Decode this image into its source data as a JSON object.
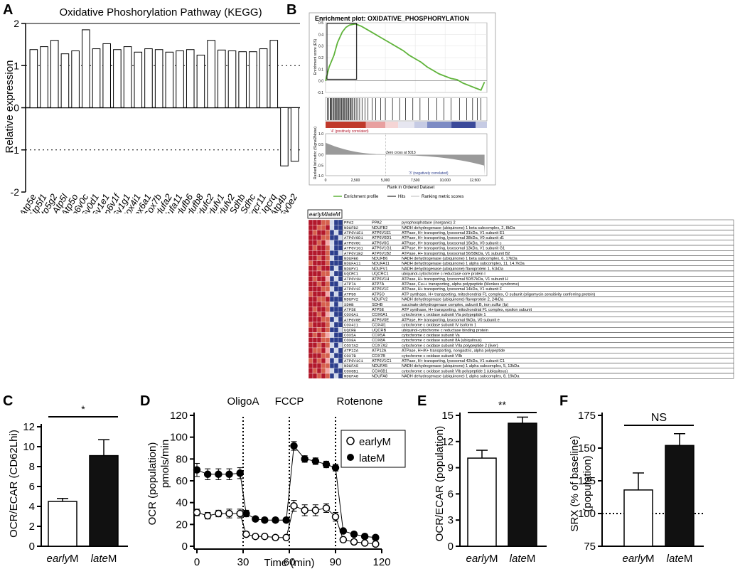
{
  "panel_labels": {
    "a": "A",
    "b": "B",
    "c": "C",
    "d": "D",
    "e": "E",
    "f": "F"
  },
  "chart_data": [
    {
      "id": "A",
      "type": "bar",
      "title": "Oxidative Phoshorylation Pathway (KEGG)",
      "ylabel": "Relative expression",
      "ylim": [
        -2,
        2
      ],
      "yticks": [
        "-2",
        "-1",
        "0",
        "1",
        "2"
      ],
      "reference_lines": [
        1,
        -1
      ],
      "categories": [
        "Atp5e",
        "Atp5f1",
        "Atp5g2",
        "Atp5l",
        "Atp5o",
        "Atp6v0c",
        "Atp6v0d1",
        "Atp6v1e1",
        "Atp6v1f",
        "Atp6v1g1",
        "Cox4i1",
        "Cox6a1",
        "Cox7b",
        "Ndufa2",
        "Ndufa11",
        "Ndufb6",
        "Ndufb8",
        "Ndufc2",
        "Ndufv1",
        "Ndufv2",
        "Sdhb",
        "Sdhc",
        "Uqcr11",
        "Uqcrq",
        "Atp4b",
        "Atp6v0e2"
      ],
      "values": [
        1.38,
        1.45,
        1.6,
        1.28,
        1.35,
        1.85,
        1.4,
        1.52,
        1.38,
        1.45,
        1.32,
        1.4,
        1.38,
        1.32,
        1.35,
        1.38,
        1.25,
        1.6,
        1.37,
        1.35,
        1.33,
        1.33,
        1.4,
        1.6,
        -1.38,
        -1.27
      ]
    },
    {
      "id": "B",
      "type": "line",
      "title": "Enrichment plot: OXIDATIVE_PHOSPHORYLATION",
      "ylabel": "Enrichment score (ES)",
      "ylabel2": "Ranked list metric (Signal2Noise)",
      "xlabel": "Rank in Ordered Dataset",
      "xlim": [
        0,
        13500
      ],
      "xticks": [
        "0",
        "2,500",
        "5,000",
        "7,500",
        "10,000",
        "12,500"
      ],
      "ylim": [
        -0.1,
        0.5
      ],
      "yticks": [
        "0.5",
        "0.4",
        "0.3",
        "0.2",
        "0.1",
        "0.0",
        "-0.1"
      ],
      "ylim2": [
        -1.0,
        1.0
      ],
      "yticks2": [
        "1.0",
        "0.5",
        "0.0",
        "-0.5",
        "-1.0"
      ],
      "label_pos": "'4' (positively correlated)",
      "label_neg": "'3' (negatively correlated)",
      "zero_cross": "Zero cross at 5013",
      "legend": [
        "Enrichment profile",
        "Hits",
        "Ranking metric scores"
      ],
      "es_curve": {
        "x": [
          0,
          300,
          700,
          1000,
          1400,
          1700,
          2000,
          2500,
          3000,
          3500,
          4000,
          4500,
          5000,
          5500,
          6000,
          6500,
          7000,
          7500,
          8000,
          8500,
          9000,
          9500,
          10000,
          10500,
          11000,
          11500,
          12000,
          12500,
          13000,
          13300
        ],
        "y": [
          0.0,
          0.12,
          0.22,
          0.33,
          0.42,
          0.46,
          0.48,
          0.49,
          0.47,
          0.44,
          0.41,
          0.38,
          0.35,
          0.32,
          0.29,
          0.26,
          0.22,
          0.19,
          0.16,
          0.12,
          0.09,
          0.06,
          0.04,
          0.02,
          0.01,
          -0.02,
          -0.04,
          -0.06,
          -0.08,
          -0.01
        ]
      },
      "hits": [
        150,
        260,
        380,
        450,
        520,
        610,
        700,
        780,
        860,
        940,
        1010,
        1090,
        1180,
        1260,
        1340,
        1420,
        1510,
        1590,
        1680,
        1770,
        1850,
        1930,
        2030,
        2120,
        2200,
        2300,
        2420,
        2560,
        2700,
        2850,
        3050,
        3300,
        3550,
        3900,
        4200,
        4600,
        5000,
        5600,
        6200,
        6700,
        7300,
        7900,
        8600,
        9300,
        9900,
        10500,
        11200,
        11800,
        12300,
        12700,
        13000
      ]
    },
    {
      "id": "C",
      "type": "bar",
      "ylabel": "OCR/ECAR (CD62Lhi)",
      "ylim": [
        0,
        12
      ],
      "yticks": [
        "0",
        "2",
        "4",
        "6",
        "8",
        "10",
        "12"
      ],
      "categories": [
        "earlyM",
        "lateM"
      ],
      "values": [
        4.5,
        9.1
      ],
      "errors": [
        0.3,
        1.6
      ],
      "significance": "*"
    },
    {
      "id": "D",
      "type": "line",
      "ylabel": "OCR (population)",
      "ylabel2": "pmols/min",
      "xlabel": "Time (min)",
      "xlim": [
        0,
        120
      ],
      "xticks": [
        "0",
        "30",
        "60",
        "90",
        "120"
      ],
      "ylim": [
        0,
        120
      ],
      "yticks": [
        "0",
        "20",
        "40",
        "60",
        "80",
        "100",
        "120"
      ],
      "injections": [
        {
          "label": "OligoA",
          "time": 30
        },
        {
          "label": "FCCP",
          "time": 60
        },
        {
          "label": "Rotenone",
          "time": 90
        }
      ],
      "series": [
        {
          "name": "earlyM",
          "x": [
            0,
            7,
            14,
            21,
            28,
            32,
            38,
            44,
            51,
            58,
            63,
            70,
            77,
            84,
            90,
            95,
            102,
            109,
            116
          ],
          "y": [
            31,
            28,
            30,
            30,
            30,
            11,
            9,
            9,
            8,
            8,
            37,
            33,
            33,
            35,
            27,
            6,
            4,
            3,
            2
          ],
          "err": [
            3,
            3,
            3,
            4,
            4,
            2,
            1,
            1,
            1,
            1,
            5,
            5,
            5,
            4,
            4,
            2,
            1,
            1,
            1
          ],
          "filled": false
        },
        {
          "name": "lateM",
          "x": [
            0,
            7,
            14,
            21,
            28,
            32,
            38,
            44,
            51,
            58,
            63,
            70,
            77,
            84,
            90,
            95,
            102,
            109,
            116
          ],
          "y": [
            70,
            66,
            66,
            66,
            67,
            30,
            25,
            24,
            24,
            24,
            92,
            80,
            78,
            75,
            72,
            14,
            11,
            9,
            8
          ],
          "err": [
            6,
            5,
            5,
            5,
            5,
            3,
            2,
            2,
            2,
            2,
            4,
            3,
            3,
            3,
            3,
            2,
            2,
            2,
            2
          ],
          "filled": true
        }
      ]
    },
    {
      "id": "E",
      "type": "bar",
      "ylabel": "OCR/ECAR (population)",
      "ylim": [
        0,
        15
      ],
      "yticks": [
        "0",
        "3",
        "6",
        "9",
        "12",
        "15"
      ],
      "categories": [
        "earlyM",
        "lateM"
      ],
      "values": [
        10.1,
        14.1
      ],
      "errors": [
        0.9,
        0.7
      ],
      "significance": "**"
    },
    {
      "id": "F",
      "type": "bar",
      "ylabel": "SRX (% of baseline)",
      "ylabel2": "(population)",
      "ylim": [
        75,
        175
      ],
      "yticks": [
        "75",
        "100",
        "125",
        "150",
        "175"
      ],
      "reference_lines": [
        100
      ],
      "categories": [
        "earlyM",
        "lateM"
      ],
      "values": [
        118,
        152
      ],
      "errors": [
        13,
        9
      ],
      "significance": "NS"
    }
  ],
  "heatmap": {
    "headers": [
      "earlyM",
      "lateM"
    ],
    "rows": [
      [
        "PPA2",
        "PPA2",
        "pyrophosphatase (inorganic) 2"
      ],
      [
        "NDUFB2",
        "NDUFB2",
        "NADH dehydrogenase (ubiquinone) 1 beta subcomplex, 2, 8kDa"
      ],
      [
        "ATP6V1E1",
        "ATP6V1E1",
        "ATPase, H+ transporting, lysosomal 31kDa, V1 subunit E1"
      ],
      [
        "ATP6V0D1",
        "ATP6V0D1",
        "ATPase, H+ transporting, lysosomal 38kDa, V0 subunit d1"
      ],
      [
        "ATP6V0C",
        "ATP6V0C",
        "ATPase, H+ transporting, lysosomal 16kDa, V0 subunit c"
      ],
      [
        "ATP6V1G1",
        "ATP6V1G1",
        "ATPase, H+ transporting, lysosomal 13kDa, V1 subunit G1"
      ],
      [
        "ATP6V1B2",
        "ATP6V1B2",
        "ATPase, H+ transporting, lysosomal 56/58kDa, V1 subunit B2"
      ],
      [
        "NDUFB6",
        "NDUFB6",
        "NADH dehydrogenase (ubiquinone) 1 beta subcomplex, 6, 17kDa"
      ],
      [
        "NDUFA11",
        "NDUFA11",
        "NADH dehydrogenase (ubiquinone) 1 alpha subcomplex, 11, 14.7kDa"
      ],
      [
        "NDUFV1",
        "NDUFV1",
        "NADH dehydrogenase (ubiquinone) flavoprotein 1, 51kDa"
      ],
      [
        "UQCRC1",
        "UQCRC1",
        "ubiquinol-cytochrome c reductase core protein I"
      ],
      [
        "ATP6V1H",
        "ATP6V1H",
        "ATPase, H+ transporting, lysosomal 50/57kDa, V1 subunit H"
      ],
      [
        "ATP7A",
        "ATP7A",
        "ATPase, Cu++ transporting, alpha polypeptide (Menkes syndrome)"
      ],
      [
        "ATP6V1F",
        "ATP6V1F",
        "ATPase, H+ transporting, lysosomal 14kDa, V1 subunit F"
      ],
      [
        "ATP5O",
        "ATP5O",
        "ATP synthase, H+ transporting, mitochondrial F1 complex, O subunit (oligomycin sensitivity conferring protein)"
      ],
      [
        "NDUFV2",
        "NDUFV2",
        "NADH dehydrogenase (ubiquinone) flavoprotein 2, 24kDa"
      ],
      [
        "SDHB",
        "SDHB",
        "succinate dehydrogenase complex, subunit B, iron sulfur (Ip)"
      ],
      [
        "ATP5E",
        "ATP5E",
        "ATP synthase, H+ transporting, mitochondrial F1 complex, epsilon subunit"
      ],
      [
        "COX6A1",
        "COX6A1",
        "cytochrome c oxidase subunit VIa polypeptide 1"
      ],
      [
        "ATP6V0E",
        "ATP6V0E",
        "ATPase, H+ transporting, lysosomal 9kDa, V0 subunit e"
      ],
      [
        "COX4I1",
        "COX4I1",
        "cytochrome c oxidase subunit IV isoform 1"
      ],
      [
        "UQCRB",
        "UQCRB",
        "ubiquinol-cytochrome c reductase binding protein"
      ],
      [
        "COX5A",
        "COX5A",
        "cytochrome c oxidase subunit Va"
      ],
      [
        "COX8A",
        "COX8A",
        "cytochrome c oxidase subunit 8A (ubiquitous)"
      ],
      [
        "COX7A2",
        "COX7A2",
        "cytochrome c oxidase subunit VIIa polypeptide 2 (liver)"
      ],
      [
        "ATP12A",
        "ATP12A",
        "ATPase, H+/K+ transporting, nongastric, alpha polypeptide"
      ],
      [
        "COX7B",
        "COX7B",
        "cytochrome c oxidase subunit VIIb"
      ],
      [
        "ATP6V1C1",
        "ATP6V1C1",
        "ATPase, H+ transporting, lysosomal 42kDa, V1 subunit C1"
      ],
      [
        "NDUFA5",
        "NDUFA5",
        "NADH dehydrogenase (ubiquinone) 1 alpha subcomplex, 5, 13kDa"
      ],
      [
        "COX6B1",
        "COX6B1",
        "cytochrome c oxidase subunit VIb polypeptide 1 (ubiquitous)"
      ],
      [
        "NDUFA8",
        "NDUFA8",
        "NADH dehydrogenase (ubiquinone) 1 alpha subcomplex, 8, 19kDa"
      ]
    ],
    "colors": {
      "high": "#b2182b",
      "mid_high": "#d6604d",
      "mid": "#f4a6a6",
      "light": "#d1d8ea",
      "low": "#2c3e8c"
    }
  },
  "colors": {
    "es_line": "#5fb33a",
    "hit": "#000000",
    "bar_open": "#ffffff",
    "bar_filled": "#111111",
    "metric": "#9a9a9a"
  }
}
